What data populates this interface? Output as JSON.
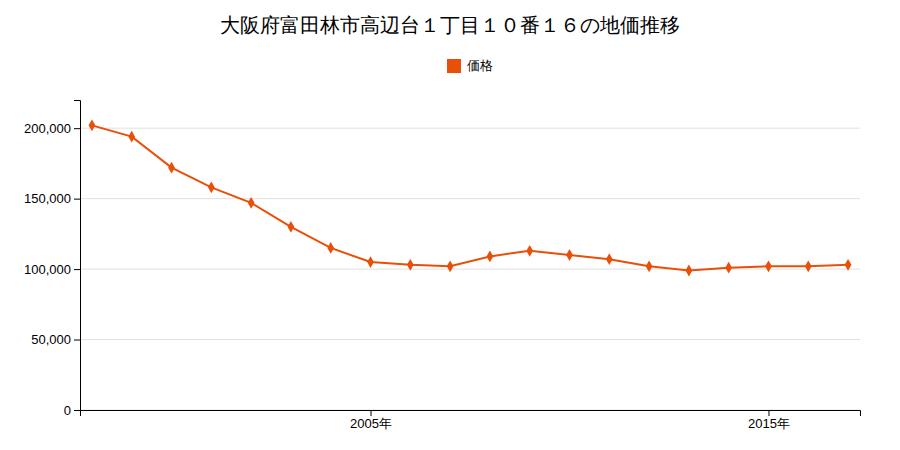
{
  "chart_data": {
    "type": "line",
    "title": "大阪府富田林市高辺台１丁目１０番１６の地価推移",
    "x": [
      1998,
      1999,
      2000,
      2001,
      2002,
      2003,
      2004,
      2005,
      2006,
      2007,
      2008,
      2009,
      2010,
      2011,
      2012,
      2013,
      2014,
      2015,
      2016,
      2017
    ],
    "series": [
      {
        "name": "価格",
        "color": "#e8500a",
        "marker": "diamond",
        "values": [
          202000,
          194000,
          172000,
          158000,
          147000,
          130000,
          115000,
          105000,
          103000,
          102000,
          109000,
          113000,
          110000,
          107000,
          102000,
          99000,
          101000,
          102000,
          102000,
          103000
        ]
      }
    ],
    "xlim": [
      1997.7,
      2017.3
    ],
    "xticks": [
      {
        "value": 2005,
        "label": "2005年"
      },
      {
        "value": 2015,
        "label": "2015年"
      }
    ],
    "ylim": [
      0,
      220000
    ],
    "yticks": [
      0,
      {
        "value": 50000,
        "label": "50,000"
      },
      {
        "value": 100000,
        "label": "100,000"
      },
      {
        "value": 150000,
        "label": "150,000"
      },
      {
        "value": 200000,
        "label": "200,000"
      }
    ],
    "grid": true,
    "legend": "top"
  }
}
